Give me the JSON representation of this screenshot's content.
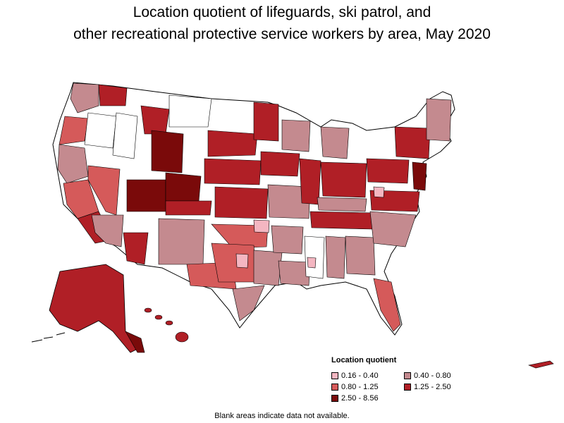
{
  "title_line1": "Location quotient of lifeguards, ski patrol, and",
  "title_line2": "other recreational protective service workers by area, May 2020",
  "legend": {
    "title": "Location quotient",
    "items": [
      {
        "label": "0.16 - 0.40",
        "color": "#f4b6c1"
      },
      {
        "label": "0.40 - 0.80",
        "color": "#c48a8f"
      },
      {
        "label": "0.80 - 1.25",
        "color": "#d55a5a"
      },
      {
        "label": "1.25 - 2.50",
        "color": "#b01f26"
      },
      {
        "label": "2.50 - 8.56",
        "color": "#7a0a0a"
      }
    ]
  },
  "footnote": "Blank areas indicate data not available.",
  "colors": {
    "blank": "#ffffff",
    "border": "#000000"
  }
}
